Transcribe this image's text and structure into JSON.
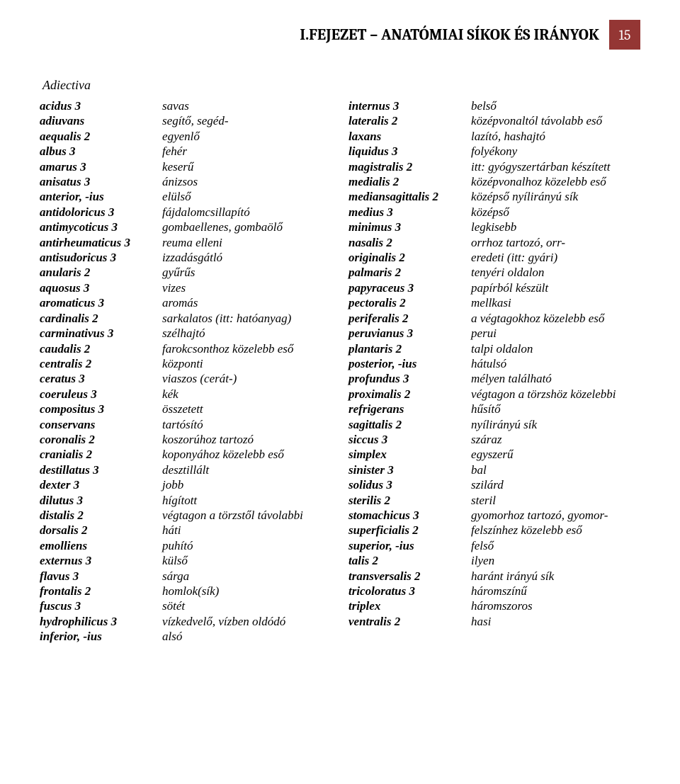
{
  "header": {
    "chapter": "I.FEJEZET – ANATÓMIAI SÍKOK ÉS IRÁNYOK",
    "page_number": "15",
    "badge_bg": "#943634",
    "badge_fg": "#ffffff"
  },
  "section_heading": "Adiectiva",
  "left": [
    {
      "term": "acidus 3",
      "def": "savas"
    },
    {
      "term": "adiuvans",
      "def": "segítő, segéd-"
    },
    {
      "term": "aequalis 2",
      "def": "egyenlő"
    },
    {
      "term": "albus 3",
      "def": "fehér"
    },
    {
      "term": "amarus 3",
      "def": "keserű"
    },
    {
      "term": "anisatus 3",
      "def": "ánizsos"
    },
    {
      "term": "anterior, -ius",
      "def": "elülső"
    },
    {
      "term": "antidoloricus 3",
      "def": "fájdalomcsillapító"
    },
    {
      "term": "antimycoticus 3",
      "def": "gombaellenes, gombaölő"
    },
    {
      "term": "antirheumaticus 3",
      "def": "reuma elleni"
    },
    {
      "term": "antisudoricus 3",
      "def": "izzadásgátló"
    },
    {
      "term": "anularis 2",
      "def": "gyűrűs"
    },
    {
      "term": "aquosus 3",
      "def": "vizes"
    },
    {
      "term": "aromaticus 3",
      "def": "aromás"
    },
    {
      "term": "cardinalis 2",
      "def": "sarkalatos (itt: hatóanyag)"
    },
    {
      "term": "carminativus 3",
      "def": "szélhajtó"
    },
    {
      "term": "caudalis 2",
      "def": "farokcsonthoz közelebb eső"
    },
    {
      "term": "centralis 2",
      "def": "központi"
    },
    {
      "term": "ceratus 3",
      "def": "viaszos (cerát-)"
    },
    {
      "term": "coeruleus 3",
      "def": "kék"
    },
    {
      "term": "compositus 3",
      "def": "összetett"
    },
    {
      "term": "conservans",
      "def": "tartósító"
    },
    {
      "term": "coronalis 2",
      "def": "koszorúhoz tartozó"
    },
    {
      "term": "cranialis 2",
      "def": "koponyához közelebb eső"
    },
    {
      "term": "destillatus 3",
      "def": "desztillált"
    },
    {
      "term": "dexter 3",
      "def": "jobb"
    },
    {
      "term": "dilutus 3",
      "def": "hígított"
    },
    {
      "term": "distalis 2",
      "def": "végtagon a törzstől távolabbi"
    },
    {
      "term": "dorsalis 2",
      "def": "háti"
    },
    {
      "term": "emolliens",
      "def": "puhító"
    },
    {
      "term": "externus 3",
      "def": "külső"
    },
    {
      "term": "flavus 3",
      "def": "sárga"
    },
    {
      "term": "frontalis 2",
      "def": "homlok(sík)"
    },
    {
      "term": "fuscus 3",
      "def": "sötét"
    },
    {
      "term": "hydrophilicus 3",
      "def": "vízkedvelő, vízben oldódó"
    },
    {
      "term": "inferior, -ius",
      "def": "alsó"
    }
  ],
  "right": [
    {
      "term": "internus 3",
      "def": "belső"
    },
    {
      "term": "lateralis 2",
      "def": "középvonaltól távolabb eső"
    },
    {
      "term": "laxans",
      "def": "lazító, hashajtó"
    },
    {
      "term": "liquidus 3",
      "def": "folyékony"
    },
    {
      "term": "magistralis 2",
      "def": " itt: gyógyszertárban készített"
    },
    {
      "term": "medialis 2",
      "def": "középvonalhoz közelebb eső"
    },
    {
      "term": "mediansagittalis 2",
      "def": "középső nyílirányú sík"
    },
    {
      "term": "medius 3",
      "def": "középső"
    },
    {
      "term": "minimus 3",
      "def": "legkisebb"
    },
    {
      "term": "nasalis 2",
      "def": "orrhoz tartozó, orr-"
    },
    {
      "term": "originalis 2",
      "def": "eredeti (itt: gyári)"
    },
    {
      "term": "palmaris 2",
      "def": "tenyéri oldalon"
    },
    {
      "term": "papyraceus 3",
      "def": "papírból készült"
    },
    {
      "term": "pectoralis 2",
      "def": "mellkasi"
    },
    {
      "term": "periferalis 2",
      "def": "a végtagokhoz közelebb eső"
    },
    {
      "term": "peruvianus 3",
      "def": "perui"
    },
    {
      "term": "plantaris 2",
      "def": "talpi oldalon"
    },
    {
      "term": "posterior, -ius",
      "def": "hátulsó"
    },
    {
      "term": "profundus 3",
      "def": "mélyen található"
    },
    {
      "term": "proximalis 2",
      "def": "végtagon a törzshöz közelebbi"
    },
    {
      "term": "refrigerans",
      "def": "hűsítő"
    },
    {
      "term": "sagittalis 2",
      "def": "nyílirányú sík"
    },
    {
      "term": "siccus 3",
      "def": "száraz"
    },
    {
      "term": "simplex",
      "def": "egyszerű"
    },
    {
      "term": "sinister 3",
      "def": "bal"
    },
    {
      "term": "solidus 3",
      "def": "szilárd"
    },
    {
      "term": "sterilis 2",
      "def": "steril"
    },
    {
      "term": "stomachicus 3",
      "def": "gyomorhoz tartozó, gyomor-"
    },
    {
      "term": "superficialis 2",
      "def": "felszínhez közelebb eső"
    },
    {
      "term": "superior, -ius",
      "def": "felső"
    },
    {
      "term": "talis 2",
      "def": "ilyen"
    },
    {
      "term": "transversalis 2",
      "def": "haránt irányú sík"
    },
    {
      "term": "tricoloratus 3",
      "def": "háromszínű"
    },
    {
      "term": "triplex",
      "def": "háromszoros"
    },
    {
      "term": "ventralis 2",
      "def": "hasi"
    }
  ]
}
